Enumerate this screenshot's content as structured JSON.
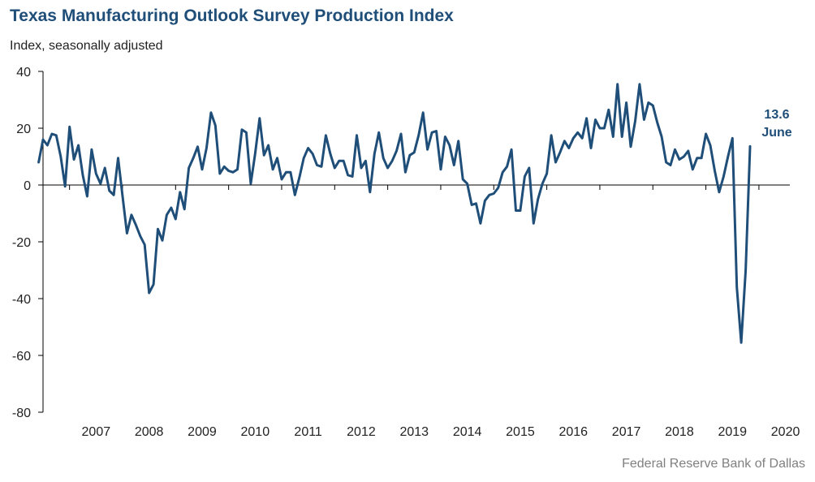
{
  "title": "Texas Manufacturing Outlook Survey Production Index",
  "subtitle": "Index, seasonally adjusted",
  "source": "Federal Reserve Bank of Dallas",
  "chart_data": {
    "type": "line",
    "ylabel": "Index, seasonally adjusted",
    "ylim": [
      -80,
      40
    ],
    "yticks": [
      40,
      20,
      0,
      -20,
      -40,
      -60,
      -80
    ],
    "xlim": [
      2006.5,
      2020.583
    ],
    "xticks": [
      "2007",
      "2008",
      "2009",
      "2010",
      "2011",
      "2012",
      "2013",
      "2014",
      "2015",
      "2016",
      "2017",
      "2018",
      "2019",
      "2020"
    ],
    "grid": false,
    "line_color": "#1f4e79",
    "annotation": {
      "value": "13.6",
      "label": "June"
    },
    "x_start": "2006-06",
    "x_step": "1 month",
    "values": [
      8,
      16,
      14,
      18,
      17.5,
      10,
      -0.5,
      20.5,
      9,
      14,
      3.5,
      -4,
      12.5,
      4,
      0.5,
      6,
      -2,
      -3.5,
      9.5,
      -4,
      -17,
      -10.5,
      -14,
      -18,
      -21,
      -38,
      -35,
      -15.5,
      -19.5,
      -10.5,
      -8,
      -12,
      -2.5,
      -8.5,
      6,
      9.5,
      13.5,
      5.5,
      13,
      25.5,
      21,
      4,
      6.5,
      5,
      4.5,
      5.5,
      19.5,
      18.5,
      0.5,
      11,
      23.5,
      10.5,
      14,
      5.5,
      9.5,
      2,
      4.5,
      4.5,
      -3.5,
      2.5,
      9.5,
      13,
      11,
      7,
      6.5,
      17.5,
      11,
      6,
      8.5,
      8.5,
      3.5,
      3,
      17.5,
      6,
      8.5,
      -2.5,
      11,
      18.5,
      9.5,
      6,
      8.5,
      12,
      18,
      4.5,
      10.5,
      11.5,
      17.5,
      25.5,
      12.5,
      18.5,
      19,
      5.5,
      17,
      14,
      7,
      15.5,
      2,
      0.5,
      -7,
      -6.5,
      -13.5,
      -5.5,
      -3.5,
      -3,
      -1,
      4.5,
      6.5,
      12.5,
      -9,
      -9,
      3,
      6,
      -13.5,
      -5,
      0.5,
      4,
      17.5,
      8,
      11.5,
      15.5,
      13,
      16.5,
      18.5,
      16.5,
      23.5,
      13,
      23,
      20,
      20,
      26.5,
      17,
      35.5,
      17,
      29,
      13.5,
      22.5,
      35.5,
      23,
      29,
      28,
      22,
      17,
      8,
      7,
      12.5,
      9,
      10,
      12,
      5.5,
      9.5,
      9.5,
      18,
      14,
      5,
      -2.5,
      3,
      10,
      16.5,
      -36,
      -55.5,
      -30,
      13.6
    ]
  }
}
